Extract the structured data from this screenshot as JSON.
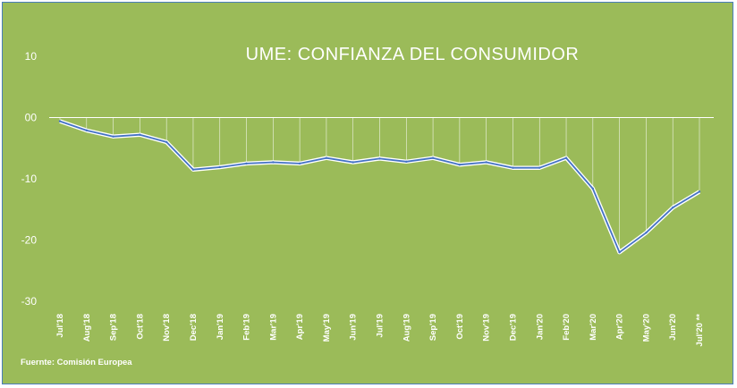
{
  "chart_data": {
    "type": "line",
    "title": "UME: CONFIANZA DEL CONSUMIDOR",
    "source": "Fuernte: Comisión Europea",
    "ylim": [
      -30,
      10
    ],
    "yticks": [
      "10",
      "00",
      "-10",
      "-20",
      "-30"
    ],
    "ytick_values": [
      10,
      0,
      -10,
      -20,
      -30
    ],
    "grid": false,
    "drop_lines": true,
    "line_color": "#4472c4",
    "line_outline_color": "#ffffff",
    "categories": [
      "Jul'18",
      "Aug'18",
      "Sep'18",
      "Oct'18",
      "Nov'18",
      "Dec'18",
      "Jan'19",
      "Feb'19",
      "Mar'19",
      "Apr'19",
      "May'19",
      "Jun'19",
      "Jul'19",
      "Aug'19",
      "Sep'19",
      "Oct'19",
      "Nov'19",
      "Dec'19",
      "Jan'20",
      "Feb'20",
      "Mar'20",
      "Apr'20",
      "May'20",
      "Jun'20",
      "Jul'20 **"
    ],
    "series": [
      {
        "values": [
          -0.6,
          -2.1,
          -3.1,
          -2.8,
          -4.0,
          -8.5,
          -8.1,
          -7.5,
          -7.3,
          -7.5,
          -6.6,
          -7.3,
          -6.7,
          -7.2,
          -6.6,
          -7.7,
          -7.3,
          -8.2,
          -8.2,
          -6.6,
          -11.6,
          -22.0,
          -18.8,
          -14.7,
          -12.1
        ]
      }
    ]
  }
}
